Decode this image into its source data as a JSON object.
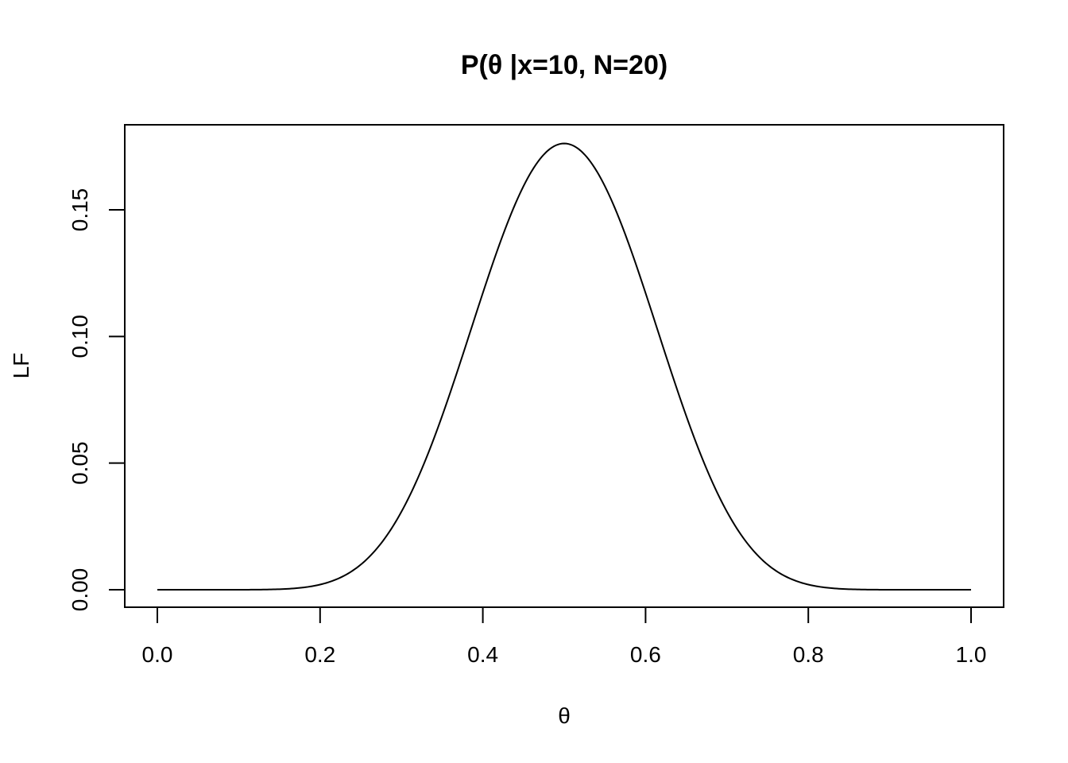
{
  "chart_data": {
    "type": "line",
    "title": "P(θ |x=10, N=20)",
    "xlabel": "θ",
    "ylabel": "LF",
    "xlim": [
      0.0,
      1.0
    ],
    "ylim": [
      0.0,
      0.176
    ],
    "grid": false,
    "colors": {
      "line": "#000000",
      "frame": "#000000",
      "background": "#ffffff"
    },
    "x_ticks": [
      0.0,
      0.2,
      0.4,
      0.6,
      0.8,
      1.0
    ],
    "x_tick_labels": [
      "0.0",
      "0.2",
      "0.4",
      "0.6",
      "0.8",
      "1.0"
    ],
    "y_ticks": [
      0.0,
      0.05,
      0.1,
      0.15
    ],
    "y_tick_labels": [
      "0.00",
      "0.05",
      "0.10",
      "0.15"
    ],
    "series": [
      {
        "x": [
          0.0,
          0.05,
          0.1,
          0.15,
          0.2,
          0.25,
          0.3,
          0.35,
          0.4,
          0.45,
          0.5,
          0.55,
          0.6,
          0.65,
          0.7,
          0.75,
          0.8,
          0.85,
          0.9,
          0.95,
          1.0
        ],
        "values": [
          0.0,
          0.0,
          6.5e-06,
          0.0004,
          0.002,
          0.0099,
          0.0308,
          0.0686,
          0.1171,
          0.1593,
          0.1762,
          0.1593,
          0.1171,
          0.0686,
          0.0308,
          0.0099,
          0.002,
          0.0004,
          6.5e-06,
          0.0,
          0.0
        ]
      }
    ]
  }
}
